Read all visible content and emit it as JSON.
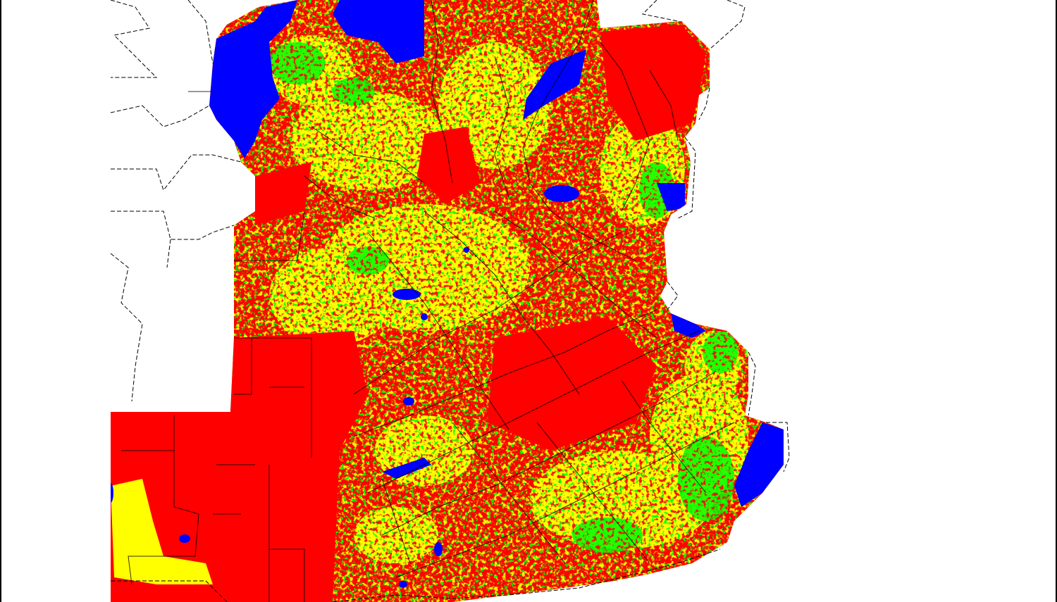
{
  "map": {
    "classes": [
      {
        "name": "red",
        "color": "#ff0000"
      },
      {
        "name": "yellow",
        "color": "#ffff00"
      },
      {
        "name": "green",
        "color": "#00ff00"
      },
      {
        "name": "blue",
        "color": "#0000ff"
      }
    ],
    "background_color": "#ffffff",
    "boundary_color": "#000000"
  }
}
